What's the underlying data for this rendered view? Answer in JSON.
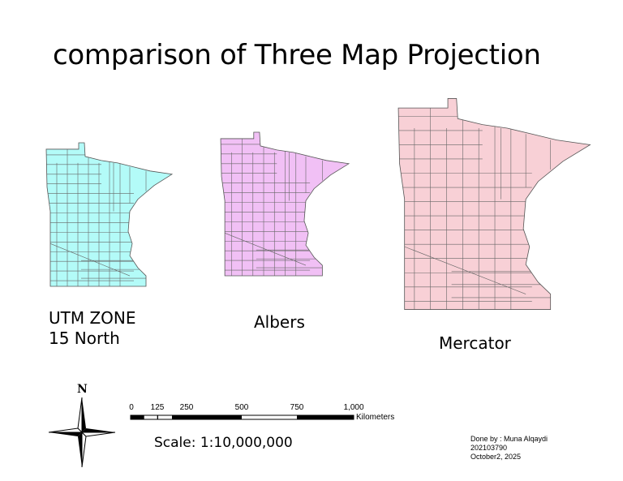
{
  "title": "comparison of Three Map Projection",
  "maps": [
    {
      "label_line1": "UTM ZONE",
      "label_line2": "15 North",
      "fill": "#b3fbf8"
    },
    {
      "label_line1": "Albers",
      "fill": "#f1c0f5"
    },
    {
      "label_line1": "Mercator",
      "fill": "#f8d0d6"
    }
  ],
  "north_arrow": {
    "label": "N"
  },
  "scale_bar": {
    "ticks": [
      "0",
      "125",
      "250",
      "500",
      "750",
      "1,000"
    ],
    "units": "Kilometers"
  },
  "scale_text": "Scale: 1:10,000,000",
  "credits": {
    "line1": "Done by : Muna Alqaydi",
    "line2": "202103790",
    "line3": "October2, 2025"
  }
}
